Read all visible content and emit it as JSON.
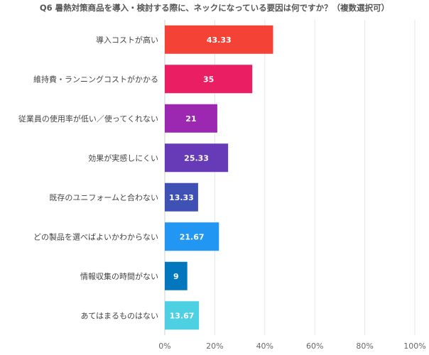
{
  "chart_data": {
    "type": "bar",
    "orientation": "horizontal",
    "title": "Q6 暑熱対策商品を導入・検討する際に、ネックになっている要因は何ですか？（複数選択可）",
    "categories": [
      "導入コストが高い",
      "維持費・ランニングコストがかかる",
      "従業員の使用率が低い／使ってくれない",
      "効果が実感しにくい",
      "既存のユニフォームと合わない",
      "どの製品を選べばよいかわからない",
      "情報収集の時間がない",
      "あてはまるものはない"
    ],
    "values": [
      43.33,
      35,
      21,
      25.33,
      13.33,
      21.67,
      9,
      13.67
    ],
    "value_labels": [
      "43.33",
      "35",
      "21",
      "25.33",
      "13.33",
      "21.67",
      "9",
      "13.67"
    ],
    "colors": [
      "#f44336",
      "#e91e63",
      "#9c27b0",
      "#673ab7",
      "#3f51b5",
      "#2196f3",
      "#0277bd",
      "#4dd0e1"
    ],
    "xlim": [
      0,
      100
    ],
    "x_ticks": [
      0,
      20,
      40,
      60,
      80,
      100
    ],
    "x_tick_labels": [
      "0%",
      "20%",
      "40%",
      "60%",
      "80%",
      "100%"
    ],
    "xlabel": "",
    "ylabel": "",
    "grid": true,
    "legend": "none"
  }
}
